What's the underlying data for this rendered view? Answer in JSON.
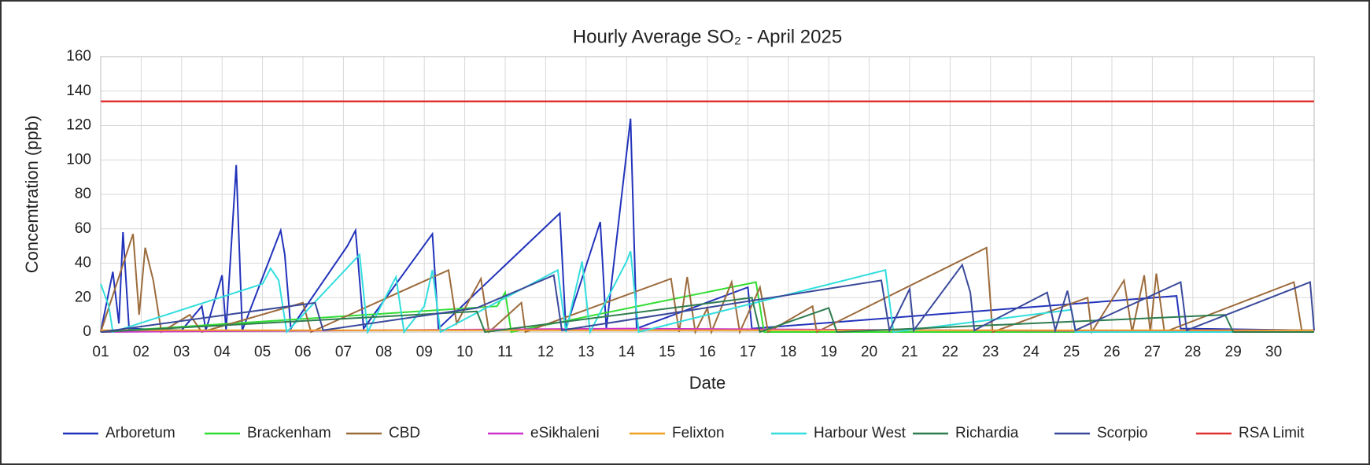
{
  "chart_data": {
    "type": "line",
    "title": "Hourly Average  SO₂ - April 2025",
    "x_label": "Date",
    "y_label": "Concemtration (ppb)",
    "xlim": [
      1,
      31
    ],
    "ylim": [
      0,
      160
    ],
    "xticks": [
      {
        "value": 1,
        "label": "01"
      },
      {
        "value": 2,
        "label": "02"
      },
      {
        "value": 3,
        "label": "03"
      },
      {
        "value": 4,
        "label": "04"
      },
      {
        "value": 5,
        "label": "05"
      },
      {
        "value": 6,
        "label": "06"
      },
      {
        "value": 7,
        "label": "07"
      },
      {
        "value": 8,
        "label": "08"
      },
      {
        "value": 9,
        "label": "09"
      },
      10,
      11,
      12,
      13,
      14,
      15,
      16,
      17,
      18,
      19,
      20,
      21,
      22,
      23,
      24,
      25,
      26,
      27,
      28,
      29,
      30
    ],
    "yticks": [
      0,
      20,
      40,
      60,
      80,
      100,
      120,
      140,
      160
    ],
    "grid": true,
    "legend": "bottom",
    "series": [
      {
        "name": "Arboretum",
        "color": "#2233bb",
        "x": [
          1,
          1.3,
          1.45,
          1.55,
          1.7,
          3,
          3.5,
          3.6,
          4,
          4.1,
          4.35,
          4.5,
          5.45,
          5.55,
          5.7,
          7.1,
          7.3,
          7.5,
          9.2,
          9.35,
          12.35,
          12.5,
          13.35,
          13.5,
          14.1,
          14.25,
          17,
          17.1,
          27.6,
          27.7,
          31
        ],
        "values": [
          0,
          35,
          5,
          58,
          2,
          1,
          15,
          1,
          33,
          1,
          97,
          1,
          59,
          45,
          2,
          50,
          59,
          2,
          57,
          2,
          69,
          2,
          64,
          2,
          124,
          2,
          26,
          2,
          21,
          2,
          1
        ]
      },
      {
        "name": "Brackenham",
        "color": "#33dd33",
        "x": [
          1,
          10.8,
          11,
          11.15,
          17.2,
          17.4,
          31
        ],
        "values": [
          0,
          15,
          23,
          0,
          29,
          0,
          0
        ]
      },
      {
        "name": "CBD",
        "color": "#9c6b3c",
        "x": [
          1,
          1.8,
          1.95,
          2.1,
          2.3,
          2.5,
          3.2,
          3.5,
          6,
          6.2,
          9.6,
          9.8,
          10.4,
          10.6,
          11.4,
          11.5,
          15.1,
          15.3,
          15.5,
          15.7,
          16,
          16.1,
          16.6,
          16.8,
          17.3,
          17.5,
          18.6,
          18.7,
          22.9,
          23.05,
          25.4,
          25.5,
          26.3,
          26.5,
          26.8,
          26.95,
          27.1,
          27.3,
          30.5,
          30.7,
          31
        ],
        "values": [
          0,
          57,
          10,
          49,
          30,
          0,
          10,
          0,
          17,
          0,
          36,
          5,
          31,
          0,
          17,
          0,
          31,
          0,
          32,
          0,
          14,
          0,
          29,
          0,
          26,
          0,
          15,
          0,
          49,
          0,
          20,
          0,
          30,
          0,
          33,
          0,
          34,
          0,
          29,
          0,
          0
        ]
      },
      {
        "name": "eSikhaleni",
        "color": "#cc33cc",
        "x": [
          1,
          14,
          31
        ],
        "values": [
          0,
          2,
          0
        ]
      },
      {
        "name": "Felixton",
        "color": "#f0a020",
        "x": [
          1,
          31
        ],
        "values": [
          1,
          1
        ]
      },
      {
        "name": "Harbour West",
        "color": "#33dddd",
        "x": [
          1,
          1.2,
          1.3,
          5,
          5.2,
          5.4,
          5.6,
          7.4,
          7.6,
          8.3,
          8.5,
          9,
          9.2,
          9.4,
          12.3,
          12.5,
          12.9,
          13.1,
          14,
          14.1,
          14.3,
          20.4,
          20.6,
          25,
          25.1,
          31
        ],
        "values": [
          28,
          15,
          0,
          28,
          37,
          30,
          0,
          45,
          0,
          32,
          0,
          15,
          36,
          0,
          36,
          0,
          41,
          0,
          41,
          47,
          0,
          36,
          0,
          13,
          0,
          0
        ]
      },
      {
        "name": "Richardia",
        "color": "#2e7d4f",
        "x": [
          1,
          10.3,
          10.5,
          17.1,
          17.3,
          19,
          19.2,
          28.8,
          29,
          31
        ],
        "values": [
          0,
          12,
          0,
          20,
          0,
          14,
          0,
          10,
          0,
          0
        ]
      },
      {
        "name": "Scorpio",
        "color": "#3a4a9a",
        "x": [
          1,
          6.3,
          6.5,
          10.3,
          12.2,
          12.4,
          20.3,
          20.5,
          21,
          21.1,
          22.3,
          22.5,
          22.6,
          24.4,
          24.6,
          24.9,
          25.1,
          27.7,
          27.85,
          30.9,
          31
        ],
        "values": [
          0,
          17,
          1,
          14,
          33,
          1,
          30,
          1,
          25,
          1,
          39,
          23,
          1,
          23,
          1,
          24,
          1,
          29,
          1,
          29,
          1
        ]
      },
      {
        "name": "RSA Limit",
        "color": "#e03030",
        "x": [
          1,
          31
        ],
        "values": [
          134,
          134
        ]
      }
    ]
  }
}
